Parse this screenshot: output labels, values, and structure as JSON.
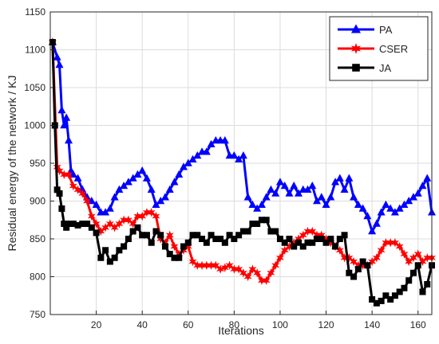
{
  "chart_data": {
    "type": "line",
    "title": "",
    "xlabel": "Iterations",
    "ylabel": "Residual energy of the network / KJ",
    "xlim": [
      0,
      166
    ],
    "ylim": [
      750,
      1150
    ],
    "xticks": [
      20,
      40,
      60,
      80,
      100,
      120,
      140,
      160
    ],
    "yticks": [
      750,
      800,
      850,
      900,
      950,
      1000,
      1050,
      1100,
      1150
    ],
    "grid": true,
    "legend_position": "top-right",
    "series": [
      {
        "name": "PA",
        "color": "#0000ff",
        "marker": "triangle",
        "x": [
          1,
          3,
          4,
          5,
          6,
          7,
          8,
          9,
          10,
          12,
          14,
          16,
          18,
          20,
          22,
          24,
          26,
          28,
          30,
          32,
          34,
          36,
          38,
          40,
          42,
          44,
          46,
          48,
          50,
          52,
          54,
          56,
          58,
          60,
          62,
          64,
          66,
          68,
          70,
          72,
          74,
          76,
          78,
          80,
          82,
          84,
          86,
          88,
          90,
          92,
          94,
          96,
          98,
          100,
          102,
          104,
          106,
          108,
          110,
          112,
          114,
          116,
          118,
          120,
          122,
          124,
          126,
          128,
          130,
          132,
          134,
          136,
          138,
          140,
          142,
          144,
          146,
          148,
          150,
          152,
          154,
          156,
          158,
          160,
          162,
          164,
          166
        ],
        "values": [
          1110,
          1090,
          1080,
          1020,
          1000,
          1010,
          980,
          940,
          935,
          930,
          915,
          905,
          900,
          895,
          885,
          885,
          890,
          905,
          915,
          920,
          925,
          930,
          935,
          940,
          930,
          915,
          895,
          900,
          905,
          915,
          925,
          935,
          945,
          950,
          955,
          960,
          965,
          965,
          975,
          980,
          980,
          980,
          960,
          960,
          955,
          960,
          905,
          895,
          890,
          895,
          905,
          915,
          910,
          925,
          920,
          910,
          920,
          910,
          915,
          915,
          920,
          900,
          905,
          895,
          905,
          925,
          930,
          915,
          930,
          905,
          895,
          890,
          880,
          860,
          870,
          885,
          895,
          890,
          885,
          890,
          895,
          900,
          905,
          910,
          920,
          930,
          885
        ]
      },
      {
        "name": "CSER",
        "color": "#ff0000",
        "marker": "star",
        "x": [
          1,
          3,
          4,
          6,
          8,
          10,
          12,
          14,
          16,
          18,
          20,
          22,
          24,
          26,
          28,
          30,
          32,
          34,
          36,
          38,
          40,
          42,
          44,
          46,
          48,
          50,
          52,
          54,
          56,
          58,
          60,
          62,
          64,
          66,
          68,
          70,
          72,
          74,
          76,
          78,
          80,
          82,
          84,
          86,
          88,
          90,
          92,
          94,
          96,
          98,
          100,
          102,
          104,
          106,
          108,
          110,
          112,
          114,
          116,
          118,
          120,
          122,
          124,
          126,
          128,
          130,
          132,
          134,
          136,
          138,
          140,
          142,
          144,
          146,
          148,
          150,
          152,
          154,
          156,
          158,
          160,
          162,
          164,
          166
        ],
        "values": [
          1110,
          945,
          940,
          935,
          935,
          920,
          915,
          910,
          900,
          880,
          870,
          860,
          865,
          870,
          865,
          870,
          875,
          875,
          870,
          880,
          880,
          885,
          885,
          880,
          850,
          845,
          855,
          840,
          830,
          835,
          840,
          820,
          815,
          815,
          815,
          815,
          815,
          810,
          812,
          815,
          810,
          810,
          805,
          800,
          810,
          805,
          795,
          795,
          805,
          815,
          825,
          835,
          840,
          845,
          850,
          855,
          860,
          860,
          855,
          855,
          850,
          845,
          840,
          835,
          825,
          825,
          820,
          815,
          815,
          815,
          820,
          825,
          835,
          845,
          845,
          845,
          840,
          830,
          820,
          825,
          830,
          820,
          825,
          825
        ]
      },
      {
        "name": "JA",
        "color": "#000000",
        "marker": "square",
        "x": [
          1,
          2,
          3,
          4,
          5,
          6,
          7,
          8,
          10,
          12,
          14,
          16,
          18,
          20,
          22,
          24,
          26,
          28,
          30,
          32,
          34,
          36,
          38,
          40,
          42,
          44,
          46,
          48,
          50,
          52,
          54,
          56,
          58,
          60,
          62,
          64,
          66,
          68,
          70,
          72,
          74,
          76,
          78,
          80,
          82,
          84,
          86,
          88,
          90,
          92,
          94,
          96,
          98,
          100,
          102,
          104,
          106,
          108,
          110,
          112,
          114,
          116,
          118,
          120,
          122,
          124,
          126,
          128,
          130,
          132,
          134,
          136,
          138,
          140,
          142,
          144,
          146,
          148,
          150,
          152,
          154,
          156,
          158,
          160,
          162,
          164,
          166
        ],
        "values": [
          1110,
          1000,
          915,
          910,
          890,
          870,
          865,
          870,
          870,
          868,
          870,
          870,
          865,
          858,
          825,
          835,
          820,
          825,
          835,
          840,
          850,
          860,
          865,
          855,
          855,
          845,
          860,
          855,
          840,
          830,
          825,
          825,
          840,
          845,
          855,
          855,
          850,
          845,
          855,
          850,
          850,
          845,
          855,
          850,
          855,
          860,
          860,
          870,
          870,
          875,
          875,
          860,
          860,
          850,
          845,
          850,
          840,
          845,
          840,
          845,
          845,
          850,
          850,
          845,
          850,
          840,
          850,
          855,
          805,
          800,
          810,
          820,
          815,
          770,
          765,
          768,
          775,
          770,
          775,
          780,
          785,
          795,
          805,
          815,
          780,
          790,
          815
        ]
      }
    ]
  }
}
